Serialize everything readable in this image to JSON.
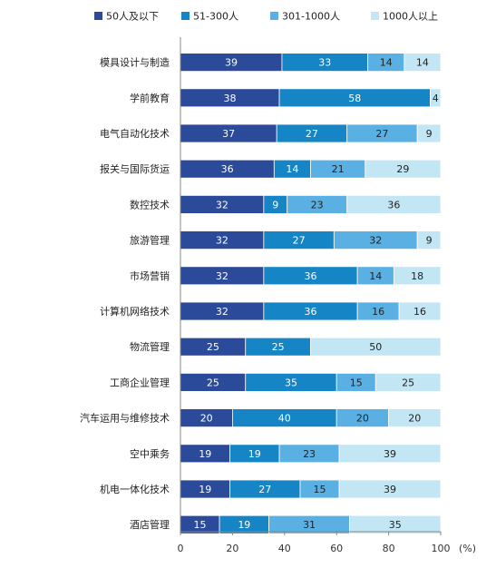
{
  "chart_data": {
    "type": "bar",
    "orientation": "horizontal",
    "stacked": true,
    "categories": [
      "模具设计与制造",
      "学前教育",
      "电气自动化技术",
      "报关与国际货运",
      "数控技术",
      "旅游管理",
      "市场营销",
      "计算机网络技术",
      "物流管理",
      "工商企业管理",
      "汽车运用与维修技术",
      "空中乘务",
      "机电一体化技术",
      "酒店管理"
    ],
    "series": [
      {
        "name": "50人及以下",
        "color": "#2c4a9a",
        "values": [
          39,
          38,
          37,
          36,
          32,
          32,
          32,
          32,
          25,
          25,
          20,
          19,
          19,
          15
        ]
      },
      {
        "name": "51-300人",
        "color": "#1585c6",
        "values": [
          33,
          58,
          27,
          14,
          9,
          27,
          36,
          36,
          25,
          35,
          40,
          19,
          27,
          19
        ]
      },
      {
        "name": "301-1000人",
        "color": "#5ab0e2",
        "values": [
          14,
          0,
          27,
          21,
          23,
          32,
          14,
          16,
          0,
          15,
          20,
          23,
          15,
          31
        ]
      },
      {
        "name": "1000人以上",
        "color": "#c3e6f5",
        "values": [
          14,
          4,
          9,
          29,
          36,
          9,
          18,
          16,
          50,
          25,
          20,
          39,
          39,
          35
        ]
      }
    ],
    "xlim": [
      0,
      100
    ],
    "xticks": [
      "0",
      "20",
      "40",
      "60",
      "80",
      "100"
    ],
    "xunit": "(%)",
    "legend_position": "top",
    "grid": false
  }
}
